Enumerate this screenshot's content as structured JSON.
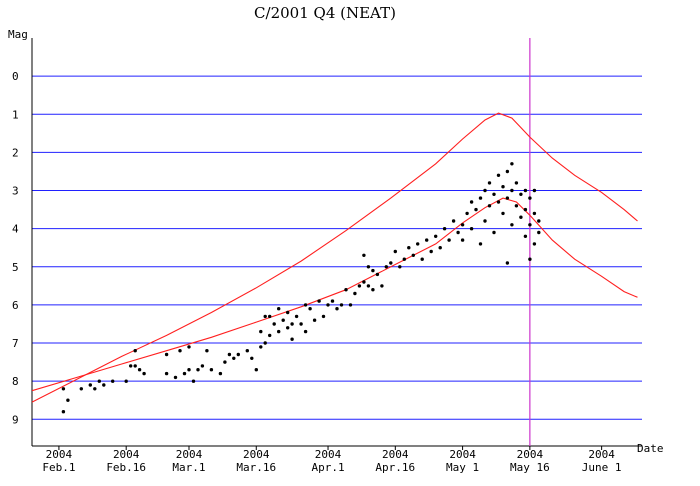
{
  "chart_data": {
    "type": "scatter",
    "title": "C/2001 Q4 (NEAT)",
    "xlabel": "Date",
    "ylabel": "Mag",
    "y_inverted": true,
    "ylim": [
      -1,
      9.7
    ],
    "xlim": [
      "2004-01-26",
      "2004-06-10"
    ],
    "x_ticks": [
      {
        "year": "2004",
        "label": "Feb.1",
        "date": "2004-02-01"
      },
      {
        "year": "2004",
        "label": "Feb.16",
        "date": "2004-02-16"
      },
      {
        "year": "2004",
        "label": "Mar.1",
        "date": "2004-03-01"
      },
      {
        "year": "2004",
        "label": "Mar.16",
        "date": "2004-03-16"
      },
      {
        "year": "2004",
        "label": "Apr.1",
        "date": "2004-04-01"
      },
      {
        "year": "2004",
        "label": "Apr.16",
        "date": "2004-04-16"
      },
      {
        "year": "2004",
        "label": "May 1",
        "date": "2004-05-01"
      },
      {
        "year": "2004",
        "label": "May 16",
        "date": "2004-05-16"
      },
      {
        "year": "2004",
        "label": "June 1",
        "date": "2004-06-01"
      }
    ],
    "y_ticks": [
      "0",
      "1",
      "2",
      "3",
      "4",
      "5",
      "6",
      "7",
      "8",
      "9"
    ],
    "grid": "horizontal",
    "grid_color": "#2020ff",
    "curve_color": "#ff2020",
    "marker_line_color": "#cc33cc",
    "marker_line_date": "2004-05-16",
    "series": [
      {
        "kind": "curve",
        "points": [
          [
            "2004-01-26",
            8.55
          ],
          [
            "2004-02-05",
            7.95
          ],
          [
            "2004-02-15",
            7.35
          ],
          [
            "2004-02-25",
            6.8
          ],
          [
            "2004-03-06",
            6.2
          ],
          [
            "2004-03-16",
            5.55
          ],
          [
            "2004-03-26",
            4.85
          ],
          [
            "2004-04-05",
            4.05
          ],
          [
            "2004-04-15",
            3.2
          ],
          [
            "2004-04-25",
            2.3
          ],
          [
            "2004-05-01",
            1.65
          ],
          [
            "2004-05-06",
            1.15
          ],
          [
            "2004-05-09",
            0.97
          ],
          [
            "2004-05-12",
            1.1
          ],
          [
            "2004-05-16",
            1.6
          ],
          [
            "2004-05-21",
            2.15
          ],
          [
            "2004-05-26",
            2.6
          ],
          [
            "2004-06-01",
            3.05
          ],
          [
            "2004-06-06",
            3.5
          ],
          [
            "2004-06-09",
            3.8
          ]
        ]
      },
      {
        "kind": "curve",
        "points": [
          [
            "2004-01-26",
            8.25
          ],
          [
            "2004-02-05",
            7.9
          ],
          [
            "2004-02-15",
            7.55
          ],
          [
            "2004-02-25",
            7.2
          ],
          [
            "2004-03-06",
            6.85
          ],
          [
            "2004-03-16",
            6.45
          ],
          [
            "2004-03-26",
            6.05
          ],
          [
            "2004-04-05",
            5.6
          ],
          [
            "2004-04-15",
            5.0
          ],
          [
            "2004-04-25",
            4.4
          ],
          [
            "2004-05-01",
            3.85
          ],
          [
            "2004-05-06",
            3.45
          ],
          [
            "2004-05-10",
            3.2
          ],
          [
            "2004-05-13",
            3.3
          ],
          [
            "2004-05-16",
            3.65
          ],
          [
            "2004-05-21",
            4.3
          ],
          [
            "2004-05-26",
            4.8
          ],
          [
            "2004-06-01",
            5.25
          ],
          [
            "2004-06-06",
            5.65
          ],
          [
            "2004-06-09",
            5.8
          ]
        ]
      },
      {
        "kind": "points",
        "points": [
          [
            "2004-02-02",
            8.8
          ],
          [
            "2004-02-02",
            8.2
          ],
          [
            "2004-02-03",
            8.5
          ],
          [
            "2004-02-06",
            8.2
          ],
          [
            "2004-02-08",
            8.1
          ],
          [
            "2004-02-09",
            8.2
          ],
          [
            "2004-02-10",
            8.0
          ],
          [
            "2004-02-11",
            8.1
          ],
          [
            "2004-02-13",
            8.0
          ],
          [
            "2004-02-16",
            8.0
          ],
          [
            "2004-02-17",
            7.6
          ],
          [
            "2004-02-18",
            7.6
          ],
          [
            "2004-02-18",
            7.2
          ],
          [
            "2004-02-19",
            7.7
          ],
          [
            "2004-02-20",
            7.8
          ],
          [
            "2004-02-25",
            7.3
          ],
          [
            "2004-02-25",
            7.8
          ],
          [
            "2004-02-27",
            7.9
          ],
          [
            "2004-02-28",
            7.2
          ],
          [
            "2004-02-29",
            7.8
          ],
          [
            "2004-03-01",
            7.1
          ],
          [
            "2004-03-01",
            7.7
          ],
          [
            "2004-03-02",
            8.0
          ],
          [
            "2004-03-03",
            7.7
          ],
          [
            "2004-03-04",
            7.6
          ],
          [
            "2004-03-05",
            7.2
          ],
          [
            "2004-03-06",
            7.7
          ],
          [
            "2004-03-08",
            7.8
          ],
          [
            "2004-03-09",
            7.5
          ],
          [
            "2004-03-10",
            7.3
          ],
          [
            "2004-03-11",
            7.4
          ],
          [
            "2004-03-12",
            7.3
          ],
          [
            "2004-03-14",
            7.2
          ],
          [
            "2004-03-15",
            7.4
          ],
          [
            "2004-03-16",
            7.7
          ],
          [
            "2004-03-17",
            7.1
          ],
          [
            "2004-03-17",
            6.7
          ],
          [
            "2004-03-18",
            6.3
          ],
          [
            "2004-03-18",
            7.0
          ],
          [
            "2004-03-19",
            6.8
          ],
          [
            "2004-03-19",
            6.3
          ],
          [
            "2004-03-20",
            6.5
          ],
          [
            "2004-03-21",
            6.1
          ],
          [
            "2004-03-21",
            6.7
          ],
          [
            "2004-03-22",
            6.4
          ],
          [
            "2004-03-23",
            6.6
          ],
          [
            "2004-03-23",
            6.2
          ],
          [
            "2004-03-24",
            6.5
          ],
          [
            "2004-03-24",
            6.9
          ],
          [
            "2004-03-25",
            6.3
          ],
          [
            "2004-03-26",
            6.5
          ],
          [
            "2004-03-27",
            6.0
          ],
          [
            "2004-03-27",
            6.7
          ],
          [
            "2004-03-28",
            6.1
          ],
          [
            "2004-03-29",
            6.4
          ],
          [
            "2004-03-30",
            5.9
          ],
          [
            "2004-03-31",
            6.3
          ],
          [
            "2004-04-01",
            6.0
          ],
          [
            "2004-04-02",
            5.9
          ],
          [
            "2004-04-03",
            6.1
          ],
          [
            "2004-04-04",
            6.0
          ],
          [
            "2004-04-05",
            5.6
          ],
          [
            "2004-04-06",
            6.0
          ],
          [
            "2004-04-07",
            5.7
          ],
          [
            "2004-04-08",
            5.5
          ],
          [
            "2004-04-09",
            5.4
          ],
          [
            "2004-04-09",
            4.7
          ],
          [
            "2004-04-10",
            5.5
          ],
          [
            "2004-04-10",
            5.0
          ],
          [
            "2004-04-11",
            5.1
          ],
          [
            "2004-04-11",
            5.6
          ],
          [
            "2004-04-12",
            5.2
          ],
          [
            "2004-04-13",
            5.5
          ],
          [
            "2004-04-14",
            5.0
          ],
          [
            "2004-04-15",
            4.9
          ],
          [
            "2004-04-16",
            4.6
          ],
          [
            "2004-04-17",
            5.0
          ],
          [
            "2004-04-18",
            4.8
          ],
          [
            "2004-04-19",
            4.5
          ],
          [
            "2004-04-20",
            4.7
          ],
          [
            "2004-04-21",
            4.4
          ],
          [
            "2004-04-22",
            4.8
          ],
          [
            "2004-04-23",
            4.3
          ],
          [
            "2004-04-24",
            4.6
          ],
          [
            "2004-04-25",
            4.2
          ],
          [
            "2004-04-26",
            4.5
          ],
          [
            "2004-04-27",
            4.0
          ],
          [
            "2004-04-28",
            4.3
          ],
          [
            "2004-04-29",
            3.8
          ],
          [
            "2004-04-30",
            4.1
          ],
          [
            "2004-05-01",
            3.9
          ],
          [
            "2004-05-01",
            4.3
          ],
          [
            "2004-05-02",
            3.6
          ],
          [
            "2004-05-03",
            3.3
          ],
          [
            "2004-05-03",
            4.0
          ],
          [
            "2004-05-04",
            3.5
          ],
          [
            "2004-05-05",
            3.2
          ],
          [
            "2004-05-05",
            4.4
          ],
          [
            "2004-05-06",
            3.0
          ],
          [
            "2004-05-06",
            3.8
          ],
          [
            "2004-05-07",
            2.8
          ],
          [
            "2004-05-07",
            3.4
          ],
          [
            "2004-05-08",
            3.1
          ],
          [
            "2004-05-08",
            4.1
          ],
          [
            "2004-05-09",
            2.6
          ],
          [
            "2004-05-09",
            3.3
          ],
          [
            "2004-05-10",
            2.9
          ],
          [
            "2004-05-10",
            3.6
          ],
          [
            "2004-05-11",
            2.5
          ],
          [
            "2004-05-11",
            3.2
          ],
          [
            "2004-05-11",
            4.9
          ],
          [
            "2004-05-12",
            2.3
          ],
          [
            "2004-05-12",
            3.0
          ],
          [
            "2004-05-12",
            3.9
          ],
          [
            "2004-05-13",
            2.8
          ],
          [
            "2004-05-13",
            3.4
          ],
          [
            "2004-05-14",
            3.1
          ],
          [
            "2004-05-14",
            3.7
          ],
          [
            "2004-05-15",
            3.0
          ],
          [
            "2004-05-15",
            3.5
          ],
          [
            "2004-05-15",
            4.2
          ],
          [
            "2004-05-16",
            3.2
          ],
          [
            "2004-05-16",
            3.9
          ],
          [
            "2004-05-16",
            4.8
          ],
          [
            "2004-05-17",
            3.0
          ],
          [
            "2004-05-17",
            3.6
          ],
          [
            "2004-05-17",
            4.4
          ],
          [
            "2004-05-18",
            3.8
          ],
          [
            "2004-05-18",
            4.1
          ]
        ]
      }
    ]
  }
}
